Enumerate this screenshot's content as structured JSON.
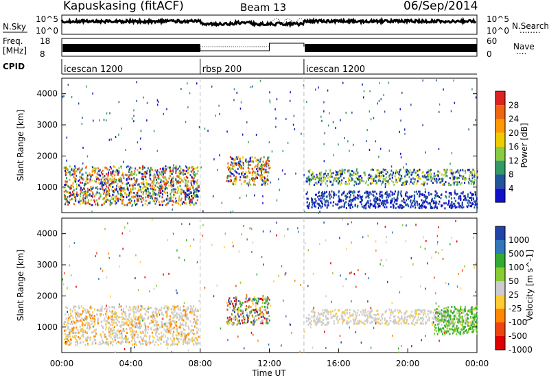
{
  "header": {
    "station": "Kapuskasing (fitACF)",
    "beam": "Beam 13",
    "date": "06/Sep/2014"
  },
  "top_panel": {
    "left_label": "N.Sky",
    "left_ticks": [
      "10^5",
      "10^0"
    ],
    "right_ticks": [
      "10^5",
      "10^0"
    ],
    "right_label": "N.Search",
    "right_legend": "........"
  },
  "freq_panel": {
    "left_label_1": "Freq.",
    "left_label_2": "[MHz]",
    "left_ticks": [
      "18",
      "8"
    ],
    "right_ticks": [
      "60",
      "0"
    ],
    "right_label": "Nave",
    "right_legend": "....",
    "freq_value_low": 10,
    "freq_value_rbsp": 11
  },
  "cpid": {
    "label": "CPID",
    "segments": [
      {
        "name": "icescan 1200",
        "start": 0,
        "end": 8
      },
      {
        "name": "rbsp 200",
        "start": 8,
        "end": 14
      },
      {
        "name": "icescan 1200",
        "start": 14,
        "end": 24
      }
    ]
  },
  "power_colorbar": {
    "label": "Power [dB]",
    "ticks": [
      "28",
      "24",
      "20",
      "16",
      "12",
      "8",
      "4"
    ],
    "colors": [
      "#dd2222",
      "#ee6611",
      "#ff9900",
      "#eecc00",
      "#88cc44",
      "#339966",
      "#225599",
      "#1111cc"
    ]
  },
  "velocity_colorbar": {
    "label": "Velocity [m s^-1]",
    "ticks": [
      "1000",
      "500",
      "100",
      "50",
      "25",
      "-25",
      "-100",
      "-500",
      "-1000"
    ],
    "colors": [
      "#2244aa",
      "#3377bb",
      "#33aa33",
      "#88cc33",
      "#cccccc",
      "#ffcc33",
      "#ff8800",
      "#ee4411",
      "#dd0000"
    ]
  },
  "chart_data": [
    {
      "type": "heatmap",
      "title": "Power",
      "xlabel": "",
      "ylabel": "Slant Range [km]",
      "xlim": [
        0,
        24
      ],
      "ylim": [
        180,
        4500
      ],
      "yticks": [
        1000,
        2000,
        3000,
        4000
      ],
      "bands": [
        {
          "x0": 0.1,
          "x1": 7.9,
          "y0": 450,
          "y1": 1700,
          "level": "mixed"
        },
        {
          "x0": 7.0,
          "x1": 8.0,
          "y0": 700,
          "y1": 950,
          "level": "low"
        },
        {
          "x0": 9.5,
          "x1": 12.0,
          "y0": 1100,
          "y1": 2000,
          "level": "mixed"
        },
        {
          "x0": 14.1,
          "x1": 24.0,
          "y0": 1100,
          "y1": 1600,
          "level": "mid"
        },
        {
          "x0": 14.1,
          "x1": 24.0,
          "y0": 350,
          "y1": 900,
          "level": "low"
        }
      ]
    },
    {
      "type": "heatmap",
      "title": "Velocity",
      "xlabel": "Time UT",
      "ylabel": "Slant Range [km]",
      "xlim": [
        0,
        24
      ],
      "ylim": [
        180,
        4500
      ],
      "yticks": [
        1000,
        2000,
        3000,
        4000
      ],
      "xticks": [
        "00:00",
        "04:00",
        "08:00",
        "12:00",
        "16:00",
        "20:00",
        "00:00"
      ],
      "bands": [
        {
          "x0": 0.1,
          "x1": 7.9,
          "y0": 450,
          "y1": 1700,
          "level": "gray-orange"
        },
        {
          "x0": 9.5,
          "x1": 12.0,
          "y0": 1100,
          "y1": 2000,
          "level": "mixed"
        },
        {
          "x0": 14.1,
          "x1": 24.0,
          "y0": 1100,
          "y1": 1600,
          "level": "gray"
        },
        {
          "x0": 21.5,
          "x1": 24.0,
          "y0": 800,
          "y1": 1700,
          "level": "green"
        }
      ]
    }
  ]
}
